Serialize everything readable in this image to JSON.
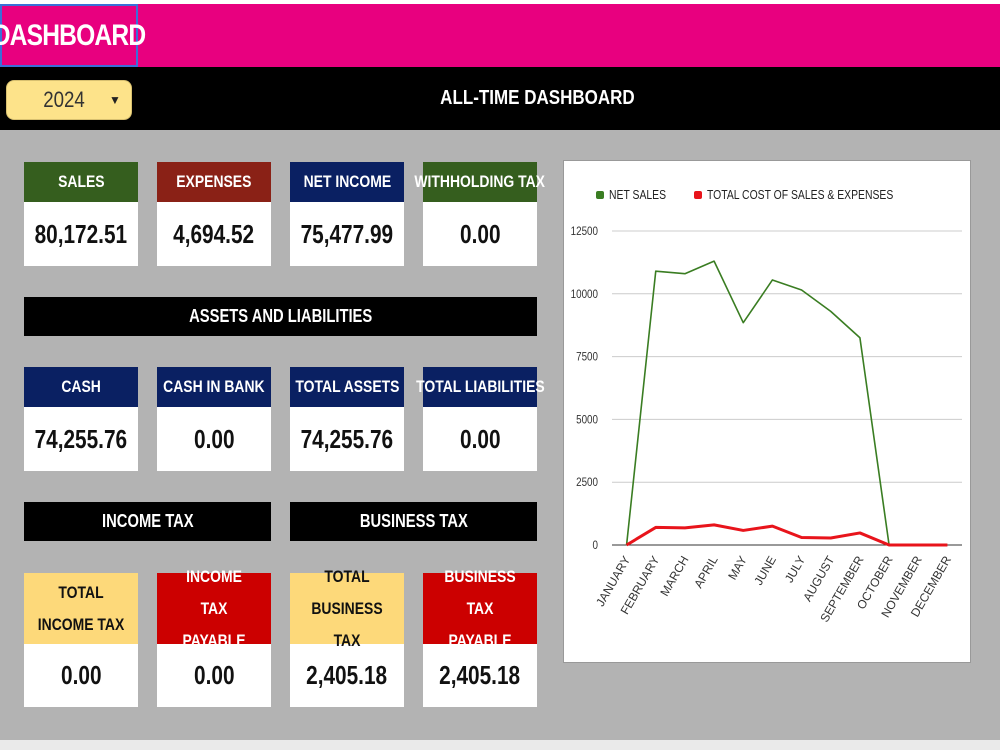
{
  "header": {
    "title": "DASHBOARD",
    "year_selected": "2024",
    "subtitle": "ALL-TIME DASHBOARD"
  },
  "summary": {
    "sales": {
      "label": "SALES",
      "value": "80,172.51"
    },
    "expenses": {
      "label": "EXPENSES",
      "value": "4,694.52"
    },
    "net_income": {
      "label": "NET INCOME",
      "value": "75,477.99"
    },
    "withholding_tax": {
      "label": "WITHHOLDING TAX",
      "value": "0.00"
    }
  },
  "assets_section": {
    "title": "ASSETS AND LIABILITIES",
    "cash": {
      "label": "CASH",
      "value": "74,255.76"
    },
    "cash_in_bank": {
      "label": "CASH IN BANK",
      "value": "0.00"
    },
    "total_assets": {
      "label": "TOTAL ASSETS",
      "value": "74,255.76"
    },
    "total_liabilities": {
      "label": "TOTAL LIABILITIES",
      "value": "0.00"
    }
  },
  "income_tax": {
    "title": "INCOME TAX",
    "total": {
      "label": "TOTAL INCOME TAX",
      "value": "0.00"
    },
    "payable": {
      "label": "INCOME TAX PAYABLE",
      "value": "0.00"
    }
  },
  "business_tax": {
    "title": "BUSINESS TAX",
    "total": {
      "label": "TOTAL BUSINESS TAX",
      "value": "2,405.18"
    },
    "payable": {
      "label": "BUSINESS TAX PAYABLE",
      "value": "2,405.18"
    }
  },
  "colors": {
    "title_bar": "#e8007f",
    "green": "#355e1e",
    "brown": "#8a2116",
    "navy": "#0a2062",
    "yellow": "#fdd97a",
    "red": "#cc0000"
  },
  "chart_data": {
    "type": "line",
    "categories": [
      "JANUARY",
      "FEBRUARY",
      "MARCH",
      "APRIL",
      "MAY",
      "JUNE",
      "JULY",
      "AUGUST",
      "SEPTEMBER",
      "OCTOBER",
      "NOVEMBER",
      "DECEMBER"
    ],
    "series": [
      {
        "name": "NET SALES",
        "color": "#3a7d22",
        "values": [
          0,
          10900,
          10800,
          11300,
          8850,
          10550,
          10150,
          9300,
          8250,
          0,
          0,
          0
        ]
      },
      {
        "name": "TOTAL COST OF SALES & EXPENSES",
        "color": "#e8141b",
        "values": [
          0,
          700,
          680,
          800,
          580,
          750,
          300,
          280,
          480,
          0,
          0,
          0
        ]
      }
    ],
    "yticks": [
      "0",
      "2500",
      "5000",
      "7500",
      "10000",
      "12500"
    ],
    "ylim": [
      0,
      12500
    ],
    "grid": true,
    "legend_position": "top"
  }
}
